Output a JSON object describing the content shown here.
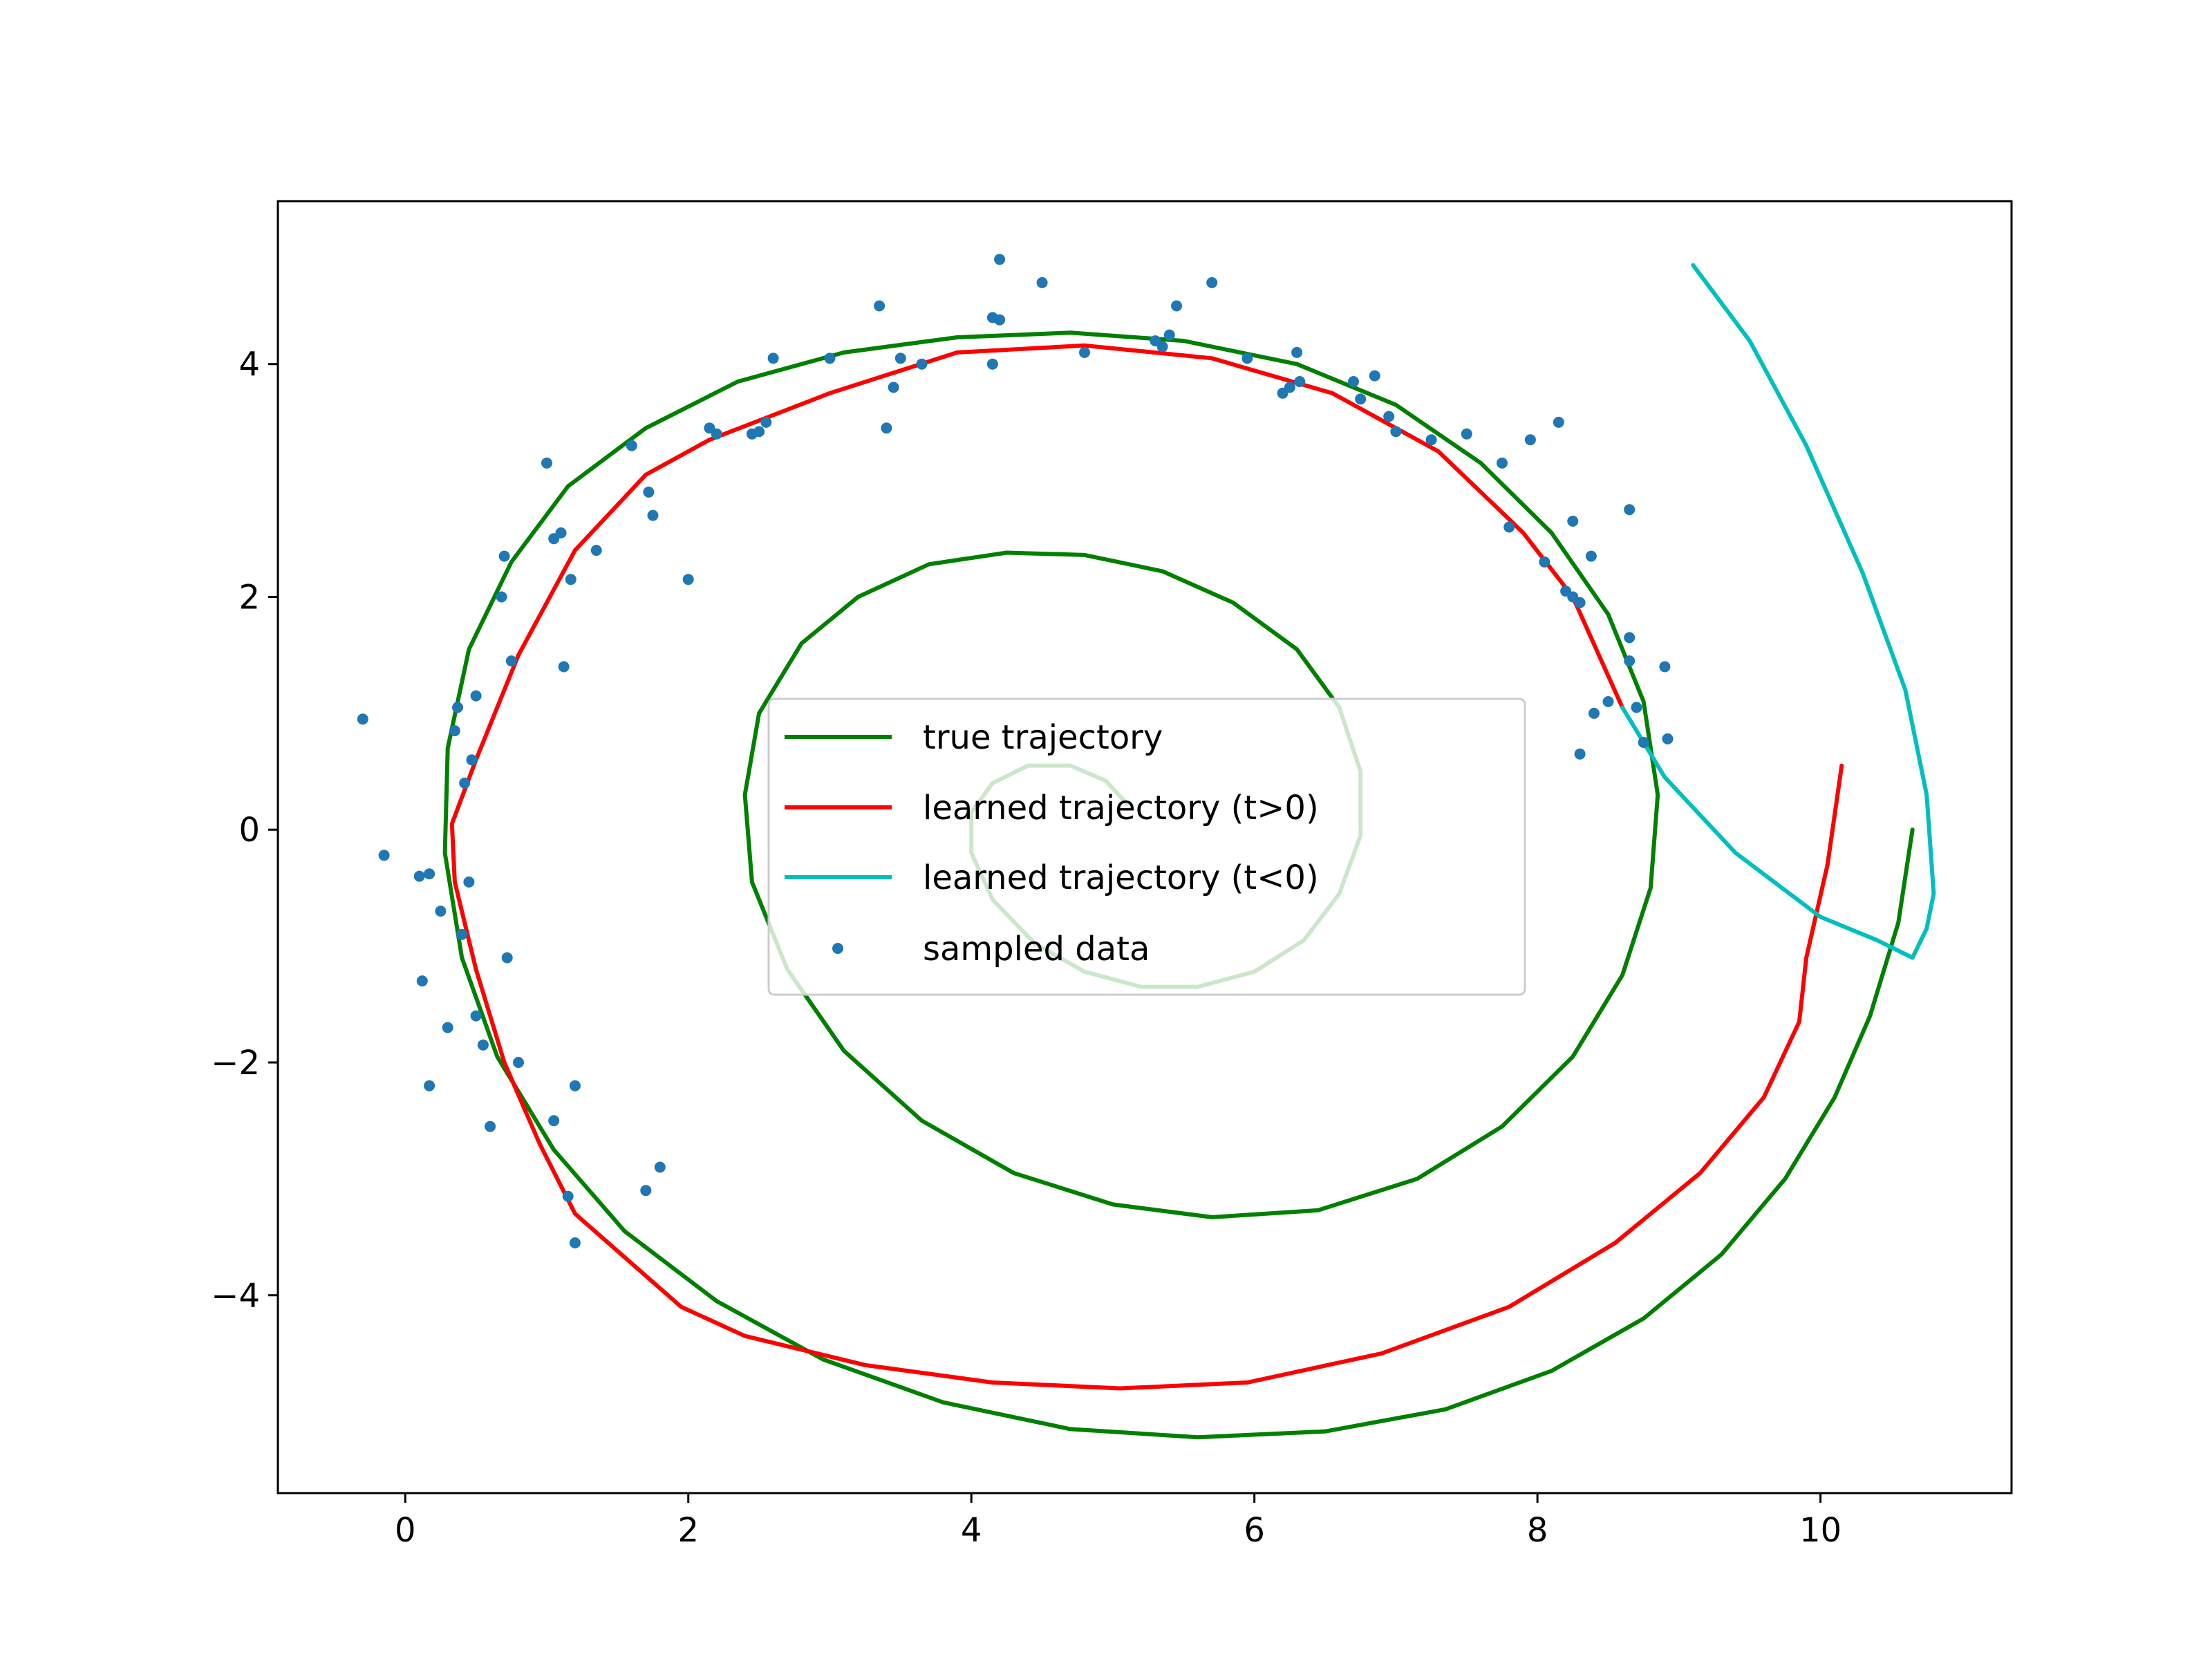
{
  "chart_data": {
    "type": "line",
    "title": "",
    "xlabel": "",
    "ylabel": "",
    "xlim": [
      -0.9,
      11.35
    ],
    "ylim": [
      -5.7,
      5.4
    ],
    "grid": false,
    "legend_position": "center",
    "x_ticks": [
      0,
      2,
      4,
      6,
      8,
      10
    ],
    "y_ticks": [
      -4,
      -2,
      0,
      2,
      4
    ],
    "x_tick_labels": [
      "0",
      "2",
      "4",
      "6",
      "8",
      "10"
    ],
    "y_tick_labels": [
      "−4",
      "−2",
      "0",
      "2",
      "4"
    ],
    "series": [
      {
        "name": "true trajectory",
        "kind": "line",
        "color": "#008000",
        "points": [
          [
            10.65,
            0.0
          ],
          [
            10.55,
            -0.8
          ],
          [
            10.35,
            -1.6
          ],
          [
            10.1,
            -2.3
          ],
          [
            9.75,
            -3.0
          ],
          [
            9.3,
            -3.65
          ],
          [
            8.75,
            -4.2
          ],
          [
            8.1,
            -4.65
          ],
          [
            7.35,
            -4.98
          ],
          [
            6.5,
            -5.17
          ],
          [
            5.6,
            -5.22
          ],
          [
            4.7,
            -5.15
          ],
          [
            3.8,
            -4.92
          ],
          [
            2.95,
            -4.55
          ],
          [
            2.2,
            -4.05
          ],
          [
            1.55,
            -3.45
          ],
          [
            1.05,
            -2.75
          ],
          [
            0.65,
            -1.95
          ],
          [
            0.4,
            -1.1
          ],
          [
            0.28,
            -0.2
          ],
          [
            0.3,
            0.7
          ],
          [
            0.45,
            1.55
          ],
          [
            0.75,
            2.3
          ],
          [
            1.15,
            2.95
          ],
          [
            1.7,
            3.45
          ],
          [
            2.35,
            3.85
          ],
          [
            3.1,
            4.1
          ],
          [
            3.9,
            4.23
          ],
          [
            4.7,
            4.27
          ],
          [
            5.5,
            4.2
          ],
          [
            6.3,
            4.0
          ],
          [
            7.0,
            3.65
          ],
          [
            7.6,
            3.15
          ],
          [
            8.1,
            2.55
          ],
          [
            8.5,
            1.85
          ],
          [
            8.75,
            1.1
          ],
          [
            8.85,
            0.3
          ],
          [
            8.8,
            -0.5
          ],
          [
            8.6,
            -1.25
          ],
          [
            8.25,
            -1.95
          ],
          [
            7.75,
            -2.55
          ],
          [
            7.15,
            -3.0
          ],
          [
            6.45,
            -3.27
          ],
          [
            5.7,
            -3.33
          ],
          [
            5.0,
            -3.22
          ],
          [
            4.3,
            -2.95
          ],
          [
            3.65,
            -2.5
          ],
          [
            3.1,
            -1.9
          ],
          [
            2.7,
            -1.2
          ],
          [
            2.45,
            -0.45
          ],
          [
            2.4,
            0.3
          ],
          [
            2.5,
            1.0
          ],
          [
            2.8,
            1.6
          ],
          [
            3.2,
            2.0
          ],
          [
            3.7,
            2.28
          ],
          [
            4.25,
            2.38
          ],
          [
            4.8,
            2.36
          ],
          [
            5.35,
            2.22
          ],
          [
            5.85,
            1.95
          ],
          [
            6.3,
            1.55
          ],
          [
            6.6,
            1.05
          ],
          [
            6.75,
            0.5
          ],
          [
            6.75,
            -0.05
          ],
          [
            6.6,
            -0.55
          ],
          [
            6.35,
            -0.95
          ],
          [
            6.0,
            -1.22
          ],
          [
            5.6,
            -1.35
          ],
          [
            5.2,
            -1.35
          ],
          [
            4.8,
            -1.22
          ],
          [
            4.45,
            -0.98
          ],
          [
            4.15,
            -0.6
          ],
          [
            4.0,
            -0.2
          ],
          [
            4.0,
            0.15
          ],
          [
            4.15,
            0.4
          ],
          [
            4.4,
            0.55
          ],
          [
            4.7,
            0.55
          ],
          [
            4.95,
            0.42
          ],
          [
            5.1,
            0.22
          ]
        ]
      },
      {
        "name": "learned trajectory (t>0)",
        "kind": "line",
        "color": "#ff0000",
        "points": [
          [
            10.15,
            0.55
          ],
          [
            10.05,
            -0.3
          ],
          [
            9.9,
            -1.1
          ],
          [
            9.85,
            -1.65
          ],
          [
            9.6,
            -2.3
          ],
          [
            9.15,
            -2.95
          ],
          [
            8.55,
            -3.55
          ],
          [
            7.8,
            -4.1
          ],
          [
            6.9,
            -4.5
          ],
          [
            5.95,
            -4.75
          ],
          [
            5.05,
            -4.8
          ],
          [
            4.15,
            -4.75
          ],
          [
            3.25,
            -4.6
          ],
          [
            2.4,
            -4.35
          ],
          [
            1.95,
            -4.1
          ],
          [
            1.2,
            -3.3
          ],
          [
            0.95,
            -2.7
          ],
          [
            0.7,
            -2.0
          ],
          [
            0.5,
            -1.2
          ],
          [
            0.35,
            -0.45
          ],
          [
            0.33,
            0.05
          ],
          [
            0.5,
            0.6
          ],
          [
            0.8,
            1.5
          ],
          [
            1.2,
            2.4
          ],
          [
            1.7,
            3.05
          ],
          [
            2.15,
            3.35
          ],
          [
            3.0,
            3.75
          ],
          [
            3.9,
            4.1
          ],
          [
            4.8,
            4.16
          ],
          [
            5.7,
            4.05
          ],
          [
            6.55,
            3.75
          ],
          [
            7.3,
            3.25
          ],
          [
            7.9,
            2.55
          ],
          [
            8.25,
            2.0
          ],
          [
            8.6,
            1.05
          ]
        ]
      },
      {
        "name": "learned trajectory (t<0)",
        "kind": "line",
        "color": "#00bfbf",
        "points": [
          [
            8.6,
            1.05
          ],
          [
            8.9,
            0.45
          ],
          [
            9.4,
            -0.2
          ],
          [
            10.0,
            -0.75
          ],
          [
            10.4,
            -0.95
          ],
          [
            10.65,
            -1.1
          ],
          [
            10.75,
            -0.85
          ],
          [
            10.8,
            -0.55
          ],
          [
            10.75,
            0.3
          ],
          [
            10.6,
            1.2
          ],
          [
            10.3,
            2.2
          ],
          [
            9.9,
            3.3
          ],
          [
            9.5,
            4.2
          ],
          [
            9.1,
            4.85
          ]
        ]
      },
      {
        "name": "sampled data",
        "kind": "scatter",
        "color": "#1f77b4",
        "points": [
          [
            -0.3,
            0.95
          ],
          [
            -0.15,
            -0.22
          ],
          [
            0.1,
            -0.4
          ],
          [
            0.17,
            -0.38
          ],
          [
            0.12,
            -1.3
          ],
          [
            0.17,
            -2.2
          ],
          [
            0.25,
            -0.7
          ],
          [
            0.3,
            -1.7
          ],
          [
            0.35,
            0.85
          ],
          [
            0.37,
            1.05
          ],
          [
            0.4,
            -0.9
          ],
          [
            0.42,
            0.4
          ],
          [
            0.45,
            -0.45
          ],
          [
            0.47,
            0.6
          ],
          [
            0.5,
            1.15
          ],
          [
            0.5,
            -1.6
          ],
          [
            0.55,
            -1.85
          ],
          [
            0.6,
            -2.55
          ],
          [
            0.68,
            2.0
          ],
          [
            0.7,
            2.35
          ],
          [
            0.72,
            -1.1
          ],
          [
            0.75,
            1.45
          ],
          [
            0.8,
            -2.0
          ],
          [
            1.05,
            -2.5
          ],
          [
            1.0,
            3.15
          ],
          [
            1.05,
            2.5
          ],
          [
            1.1,
            2.55
          ],
          [
            1.12,
            1.4
          ],
          [
            1.17,
            2.15
          ],
          [
            1.2,
            -2.2
          ],
          [
            1.2,
            -3.55
          ],
          [
            1.15,
            -3.15
          ],
          [
            1.35,
            2.4
          ],
          [
            1.6,
            3.3
          ],
          [
            1.7,
            -3.1
          ],
          [
            1.72,
            2.9
          ],
          [
            1.75,
            2.7
          ],
          [
            1.8,
            -2.9
          ],
          [
            2.0,
            2.15
          ],
          [
            2.15,
            3.45
          ],
          [
            2.2,
            3.4
          ],
          [
            2.45,
            3.4
          ],
          [
            2.5,
            3.42
          ],
          [
            2.55,
            3.5
          ],
          [
            2.6,
            4.05
          ],
          [
            3.0,
            4.05
          ],
          [
            3.35,
            4.5
          ],
          [
            3.4,
            3.45
          ],
          [
            3.45,
            3.8
          ],
          [
            3.5,
            4.05
          ],
          [
            3.65,
            4.0
          ],
          [
            4.15,
            4.4
          ],
          [
            4.2,
            4.38
          ],
          [
            4.15,
            4.0
          ],
          [
            4.2,
            4.9
          ],
          [
            4.5,
            4.7
          ],
          [
            4.8,
            4.1
          ],
          [
            5.3,
            4.2
          ],
          [
            5.35,
            4.15
          ],
          [
            5.4,
            4.25
          ],
          [
            5.45,
            4.5
          ],
          [
            5.7,
            4.7
          ],
          [
            5.95,
            4.05
          ],
          [
            6.2,
            3.75
          ],
          [
            6.25,
            3.8
          ],
          [
            6.3,
            4.1
          ],
          [
            6.32,
            3.85
          ],
          [
            6.7,
            3.85
          ],
          [
            6.75,
            3.7
          ],
          [
            6.85,
            3.9
          ],
          [
            6.95,
            3.55
          ],
          [
            7.0,
            3.42
          ],
          [
            7.25,
            3.35
          ],
          [
            7.5,
            3.4
          ],
          [
            7.75,
            3.15
          ],
          [
            7.8,
            2.6
          ],
          [
            7.95,
            3.35
          ],
          [
            8.05,
            2.3
          ],
          [
            8.15,
            3.5
          ],
          [
            8.2,
            2.05
          ],
          [
            8.25,
            2.0
          ],
          [
            8.25,
            2.65
          ],
          [
            8.3,
            1.95
          ],
          [
            8.3,
            0.65
          ],
          [
            8.38,
            2.35
          ],
          [
            8.4,
            1.0
          ],
          [
            8.5,
            1.1
          ],
          [
            8.65,
            2.75
          ],
          [
            8.65,
            1.65
          ],
          [
            8.65,
            1.45
          ],
          [
            8.7,
            1.05
          ],
          [
            8.75,
            0.75
          ],
          [
            8.9,
            1.4
          ],
          [
            8.92,
            0.78
          ]
        ]
      }
    ]
  }
}
